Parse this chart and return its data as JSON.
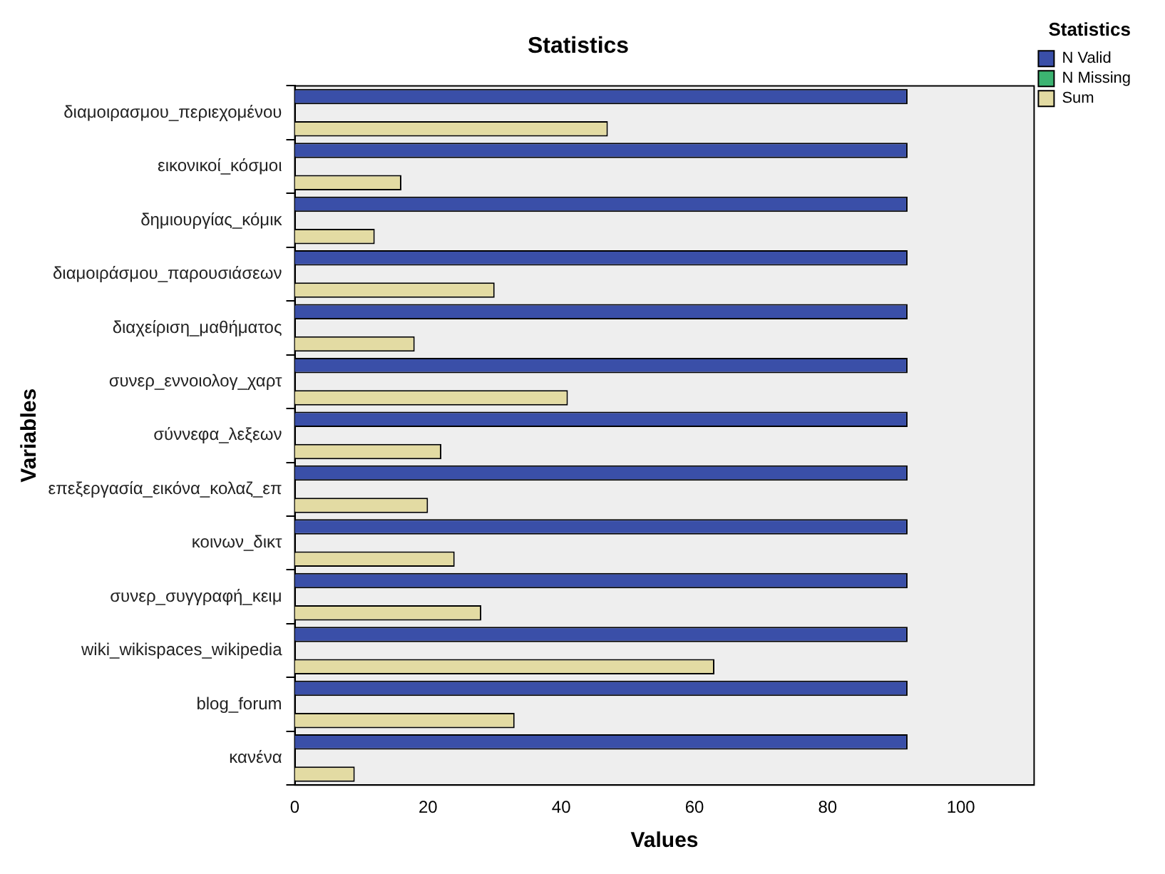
{
  "chart_data": {
    "type": "bar",
    "orientation": "horizontal",
    "title": "Statistics",
    "xlabel": "Values",
    "ylabel": "Variables",
    "legend_title": "Statistics",
    "legend": "top right",
    "categories": [
      "διαμοιρασμου_περιεχομένου",
      "εικονικοί_κόσμοι",
      "δημιουργίας_κόμικ",
      "διαμοιράσμου_παρουσιάσεων",
      "διαχείριση_μαθήματος",
      "συνερ_εννοιολογ_χαρτ",
      "σύννεφα_λεξεων",
      "επεξεργασία_εικόνα_κολαζ_επ",
      "κοινων_δικτ",
      "συνερ_συγγραφή_κειμ",
      "wiki_wikispaces_wikipedia",
      "blog_forum",
      "κανένα"
    ],
    "series": [
      {
        "name": "N Valid",
        "color": "#3a4fa8",
        "values": [
          92,
          92,
          92,
          92,
          92,
          92,
          92,
          92,
          92,
          92,
          92,
          92,
          92
        ]
      },
      {
        "name": "N Missing",
        "color": "#3cb371",
        "values": [
          0,
          0,
          0,
          0,
          0,
          0,
          0,
          0,
          0,
          0,
          0,
          0,
          0
        ]
      },
      {
        "name": "Sum",
        "color": "#e3dba3",
        "values": [
          47,
          16,
          12,
          30,
          18,
          41,
          22,
          20,
          24,
          28,
          63,
          33,
          9
        ]
      }
    ],
    "xlim": [
      0,
      111
    ],
    "xticks": [
      0,
      20,
      40,
      60,
      80,
      100
    ],
    "grid": false
  }
}
